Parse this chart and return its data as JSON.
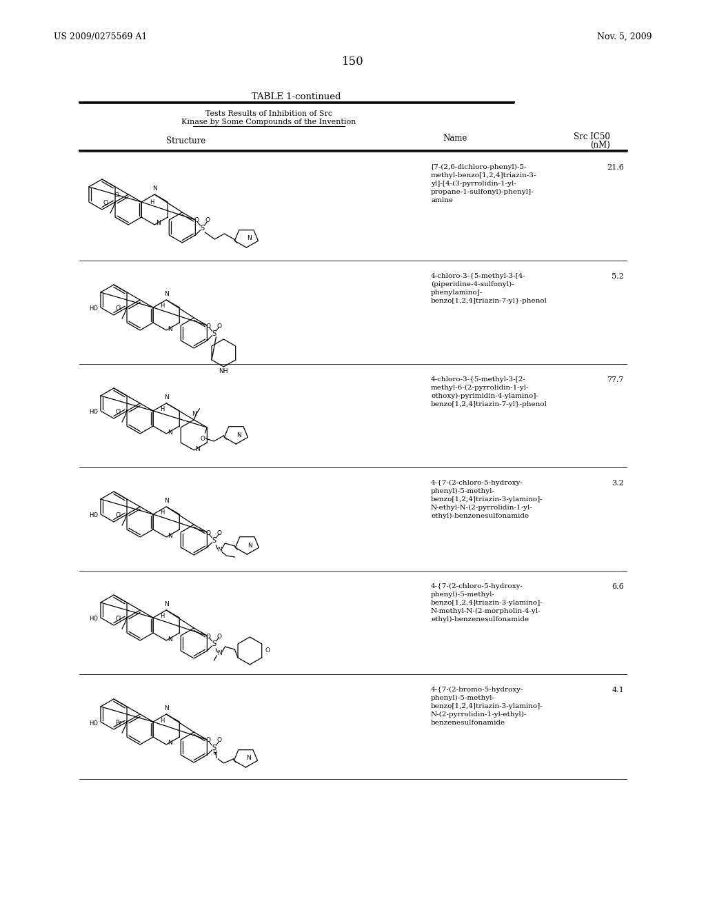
{
  "page_number": "150",
  "left_header": "US 2009/0275569 A1",
  "right_header": "Nov. 5, 2009",
  "table_title": "TABLE 1-continued",
  "table_subtitle1": "Tests Results of Inhibition of Src",
  "table_subtitle2": "Kinase by Some Compounds of the Invention",
  "rows": [
    {
      "name": "[7-(2,6-dichloro-phenyl)-5-\nmethyl-benzo[1,2,4]triazin-3-\nyl]-[4-(3-pyrrolidin-1-yl-\npropane-1-sulfonyl)-phenyl]-\namine",
      "ic50": "21.6"
    },
    {
      "name": "4-chloro-3-{5-methyl-3-[4-\n(piperidine-4-sulfonyl)-\nphenylamino]-\nbenzo[1,2,4]triazin-7-yl}-phenol",
      "ic50": "5.2"
    },
    {
      "name": "4-chloro-3-{5-methyl-3-[2-\nmethyl-6-(2-pyrrolidin-1-yl-\nethoxy)-pyrimidin-4-ylamino]-\nbenzo[1,2,4]triazin-7-yl}-phenol",
      "ic50": "77.7"
    },
    {
      "name": "4-{7-(2-chloro-5-hydroxy-\nphenyl)-5-methyl-\nbenzo[1,2,4]triazin-3-ylamino]-\nN-ethyl-N-(2-pyrrolidin-1-yl-\nethyl)-benzenesulfonamide",
      "ic50": "3.2"
    },
    {
      "name": "4-{7-(2-chloro-5-hydroxy-\nphenyl)-5-methyl-\nbenzo[1,2,4]triazin-3-ylamino]-\nN-methyl-N-(2-morpholin-4-yl-\nethyl)-benzenesulfonamide",
      "ic50": "6.6"
    },
    {
      "name": "4-{7-(2-bromo-5-hydroxy-\nphenyl)-5-methyl-\nbenzo[1,2,4]triazin-3-ylamino]-\nN-(2-pyrrolidin-1-yl-ethyl)-\nbenzenesulfonamide",
      "ic50": "4.1"
    }
  ],
  "background_color": "#ffffff",
  "text_color": "#000000"
}
